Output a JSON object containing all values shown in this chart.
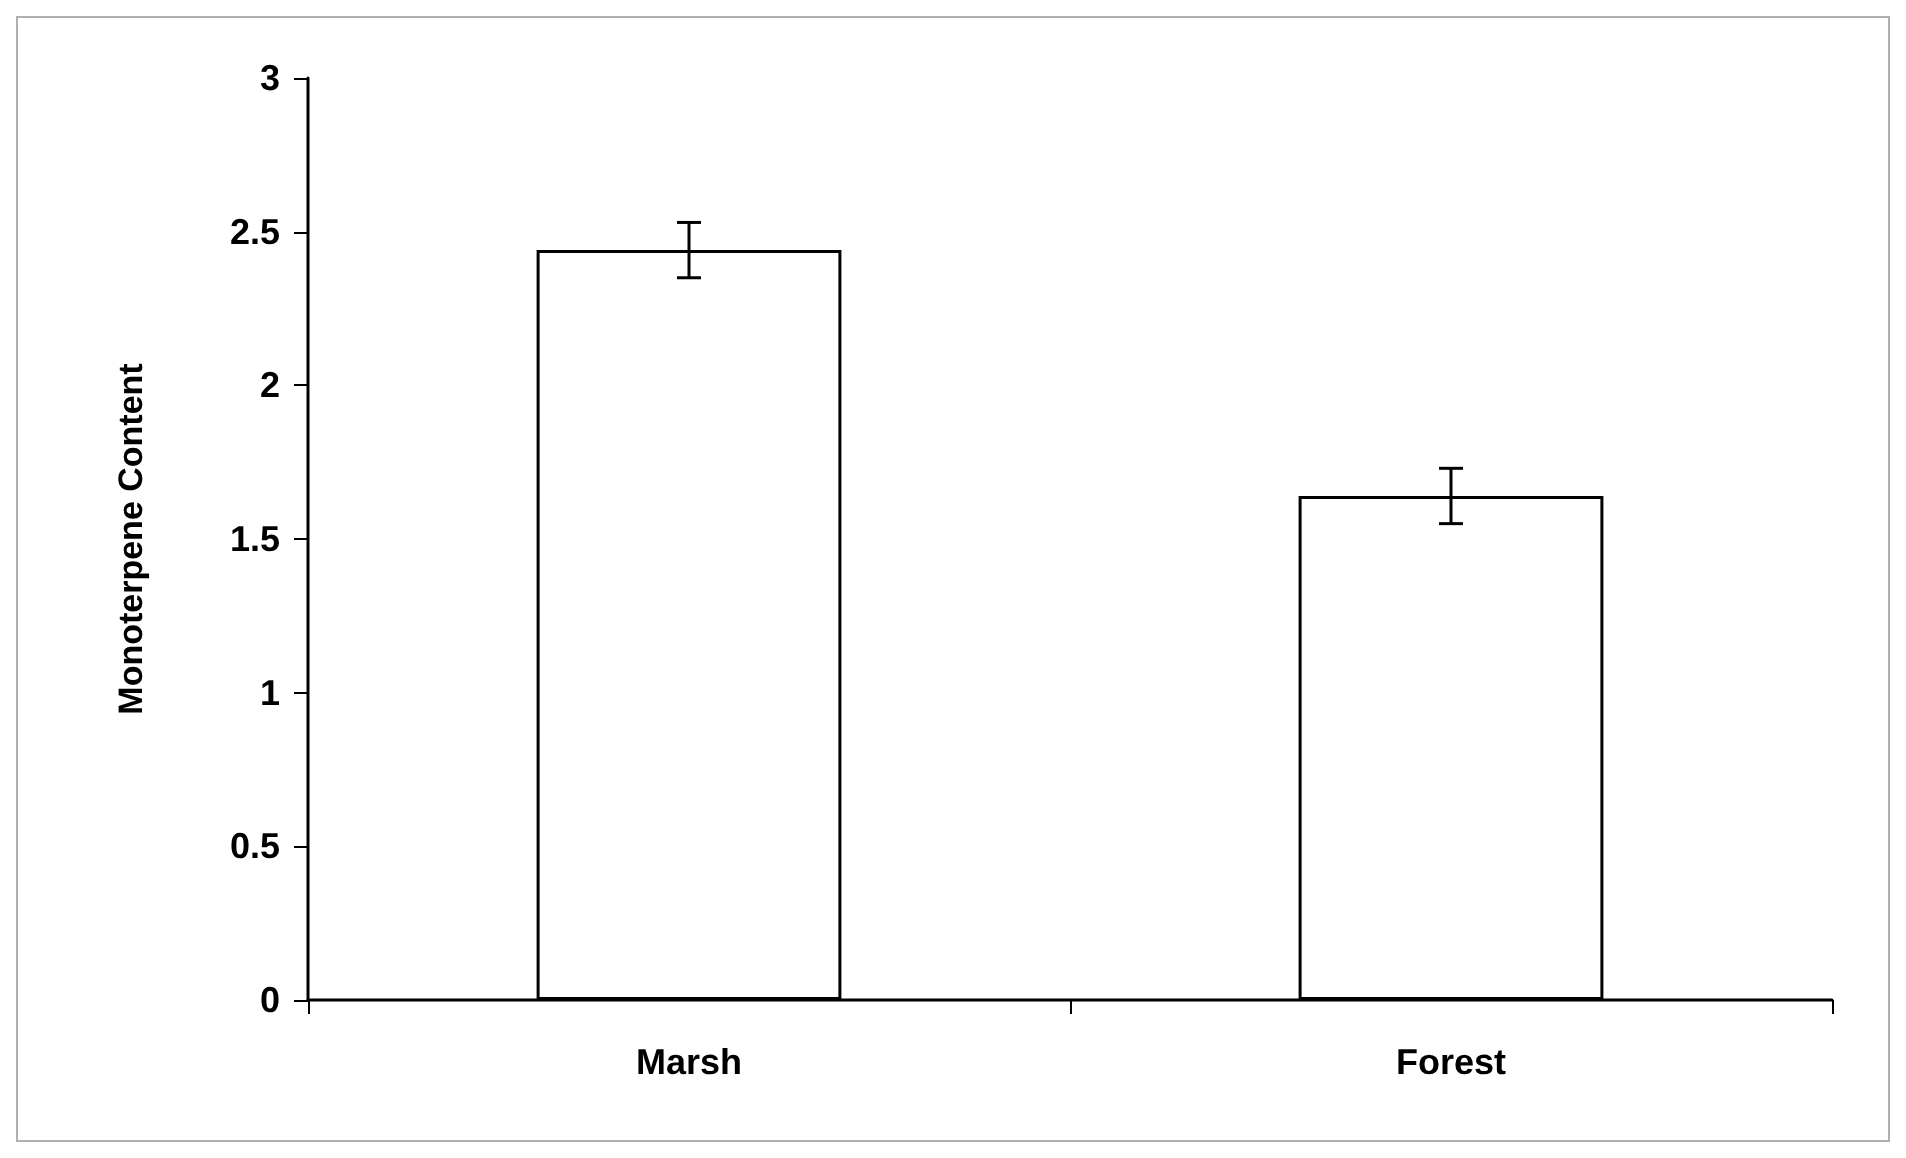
{
  "chart_data": {
    "type": "bar",
    "ylabel": "Monoterpene Content",
    "categories": [
      "Marsh",
      "Forest"
    ],
    "values": [
      2.44,
      1.64
    ],
    "errors": [
      0.09,
      0.09
    ],
    "color": "#ffffff",
    "ylim": [
      0,
      3
    ],
    "yticks": [
      0,
      0.5,
      1,
      1.5,
      2,
      2.5,
      3
    ],
    "grid": false
  }
}
